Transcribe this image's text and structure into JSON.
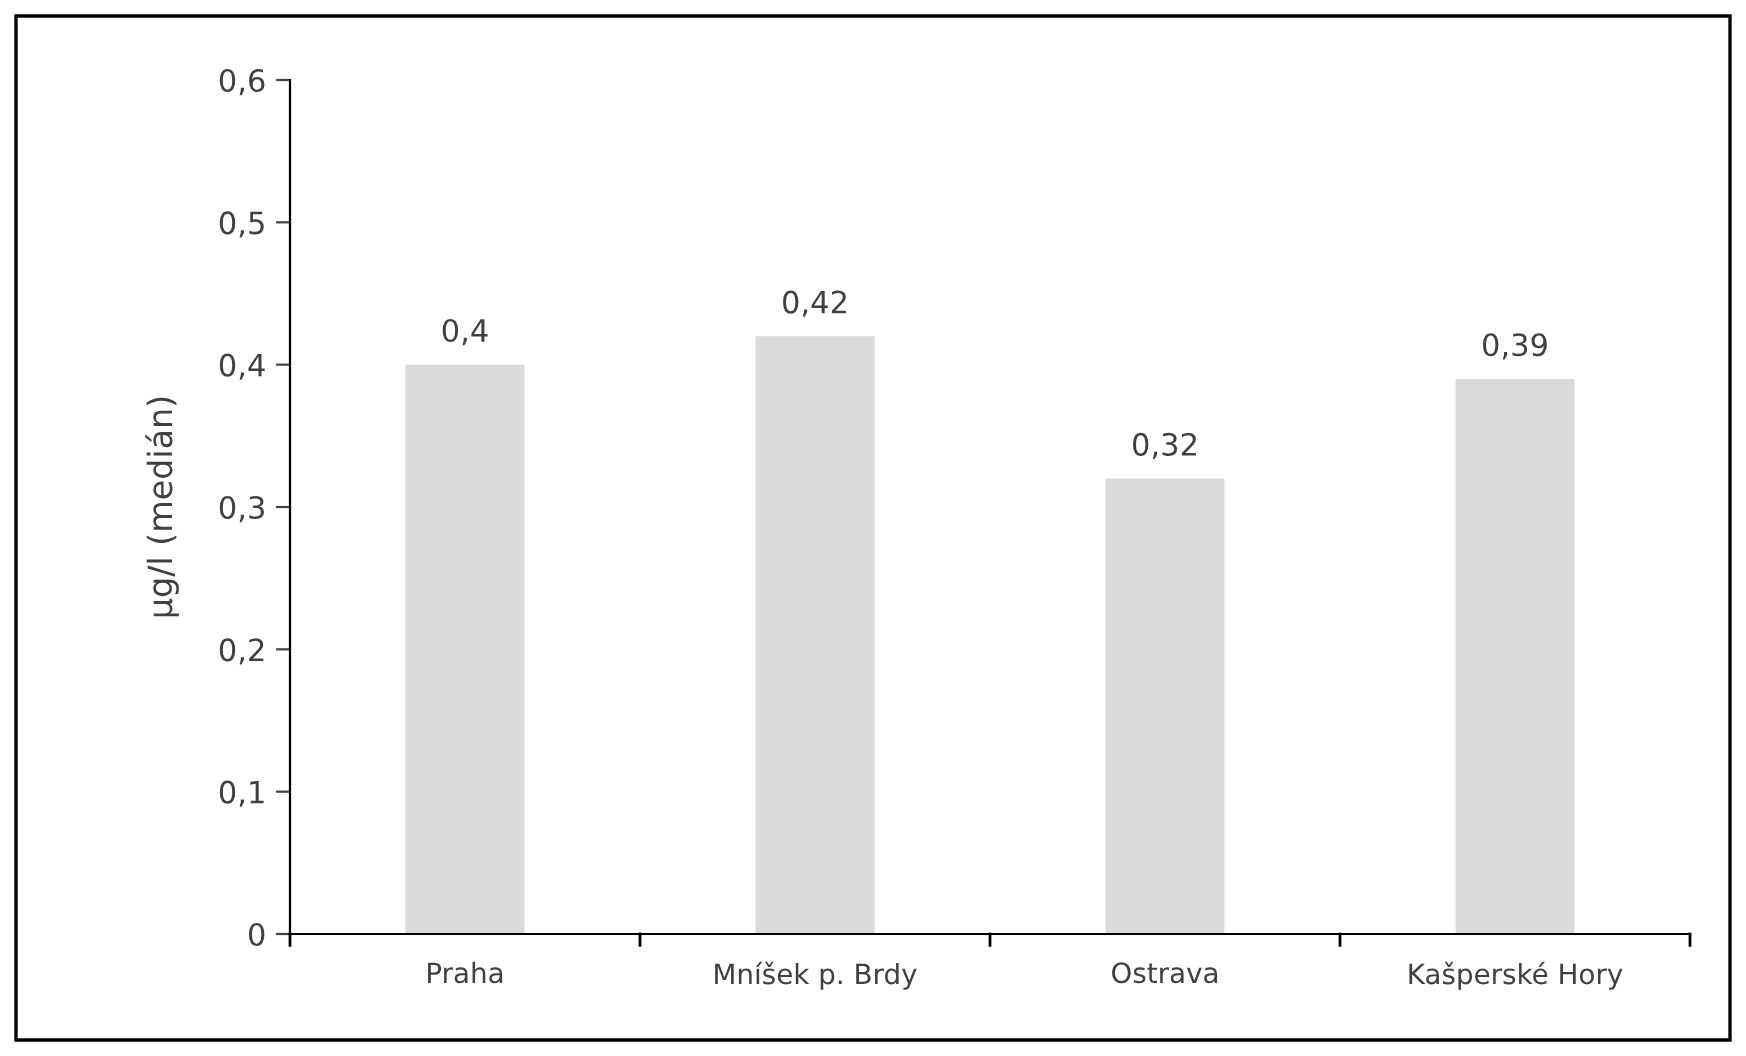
{
  "chart_data": {
    "type": "bar",
    "ylabel": "µg/l (medián)",
    "categories": [
      "Praha",
      "Mníšek p. Brdy",
      "Ostrava",
      "Kašperské Hory"
    ],
    "values": [
      0.4,
      0.42,
      0.32,
      0.39
    ],
    "value_labels": [
      "0,4",
      "0,42",
      "0,32",
      "0,39"
    ],
    "color": "#d9d9d9",
    "ylim": [
      0,
      0.6
    ],
    "yticks": [
      0,
      {
        "value": 0.1,
        "label": "0,1"
      },
      {
        "value": 0.2,
        "label": "0,2"
      },
      {
        "value": 0.3,
        "label": "0,3"
      },
      {
        "value": 0.4,
        "label": "0,4"
      },
      {
        "value": 0.5,
        "label": "0,5"
      },
      {
        "value": 0.6,
        "label": "0,6"
      }
    ],
    "grid": false,
    "legend": false
  }
}
